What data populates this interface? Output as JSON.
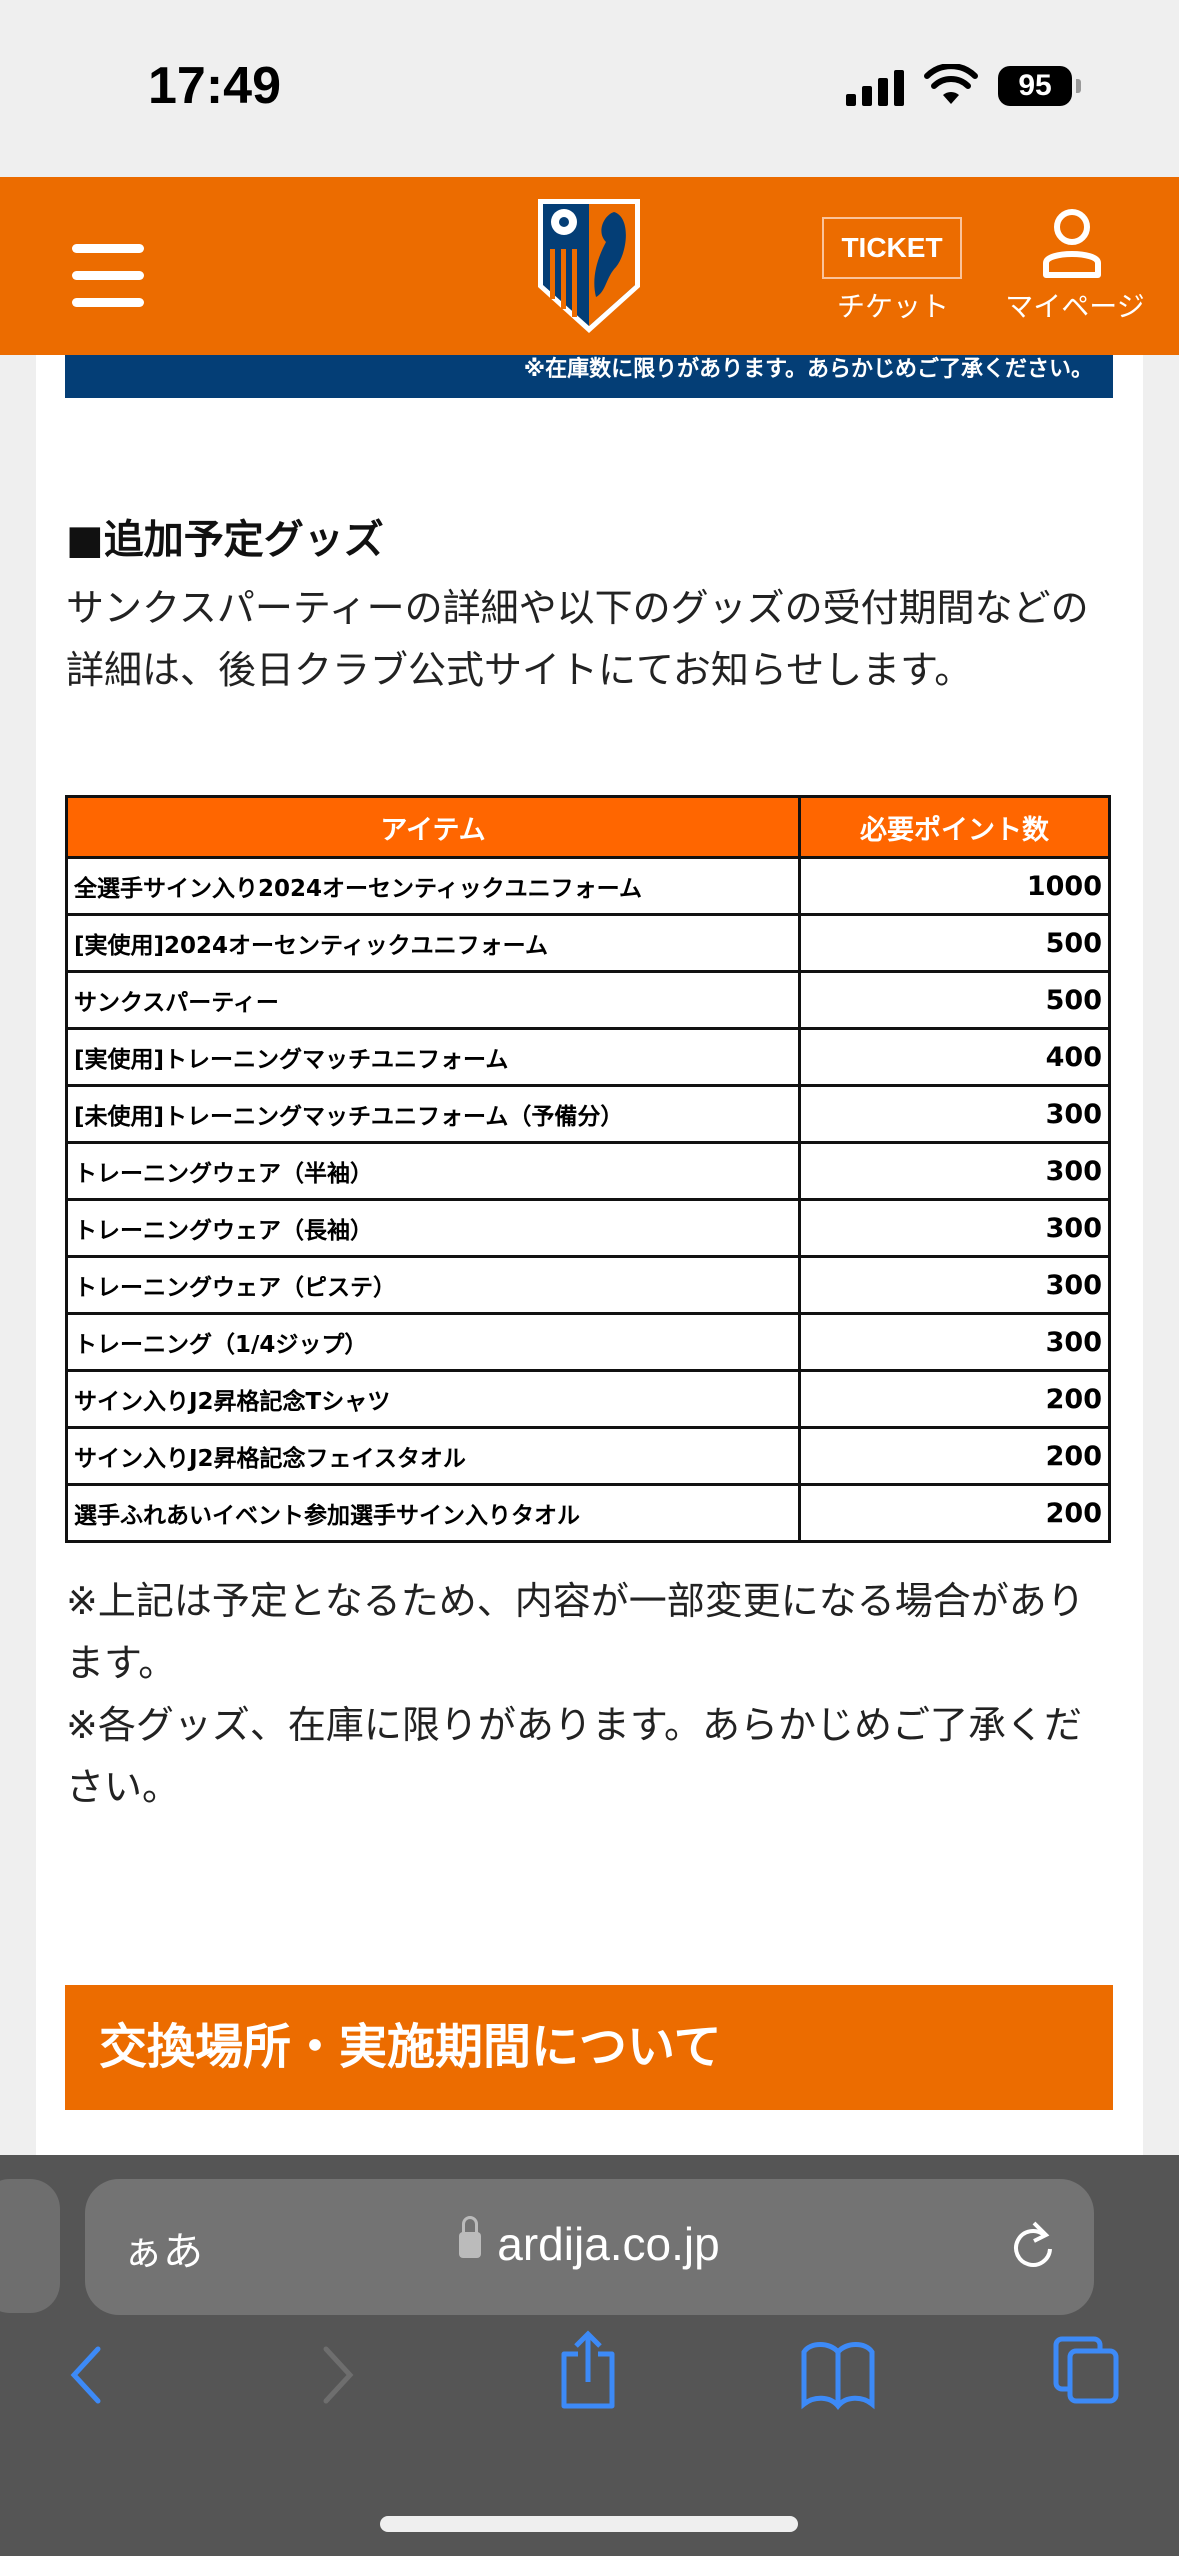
{
  "status": {
    "time": "17:49",
    "battery": "95"
  },
  "header": {
    "ticket_badge": "TICKET",
    "ticket_label": "チケット",
    "mypage_label": "マイページ",
    "logo_text": "OMIYA ARDIJA"
  },
  "banner": {
    "text": "※在庫数に限りがあります。あらかじめご了承ください。"
  },
  "section": {
    "heading": "■追加予定グッズ",
    "paragraph": "サンクスパーティーの詳細や以下のグッズの受付期間などの詳細は、後日クラブ公式サイトにてお知らせします。"
  },
  "table": {
    "headers": [
      "アイテム",
      "必要ポイント数"
    ],
    "rows": [
      {
        "item": "全選手サイン入り2024オーセンティックユニフォーム",
        "points": "1000"
      },
      {
        "item": "[実使用]2024オーセンティックユニフォーム",
        "points": "500"
      },
      {
        "item": "サンクスパーティー",
        "points": "500"
      },
      {
        "item": "[実使用]トレーニングマッチユニフォーム",
        "points": "400"
      },
      {
        "item": "[未使用]トレーニングマッチユニフォーム（予備分）",
        "points": "300"
      },
      {
        "item": "トレーニングウェア（半袖）",
        "points": "300"
      },
      {
        "item": "トレーニングウェア（長袖）",
        "points": "300"
      },
      {
        "item": "トレーニングウェア（ピステ）",
        "points": "300"
      },
      {
        "item": "トレーニング（1/4ジップ）",
        "points": "300"
      },
      {
        "item": "サイン入りJ2昇格記念Tシャツ",
        "points": "200"
      },
      {
        "item": "サイン入りJ2昇格記念フェイスタオル",
        "points": "200"
      },
      {
        "item": "選手ふれあいイベント参加選手サイン入りタオル",
        "points": "200"
      }
    ]
  },
  "notes": [
    "※上記は予定となるため、内容が一部変更になる場合があります。",
    "※各グッズ、在庫に限りがあります。あらかじめご了承ください。"
  ],
  "next_section": {
    "heading": "交換場所・実施期間について"
  },
  "browser": {
    "text_size": "ぁあ",
    "url": "ardija.co.jp"
  },
  "colors": {
    "brand_orange": "#ec6c00",
    "table_header": "#ff6600",
    "navy": "#043e76",
    "ios_blue": "#3d8af7"
  }
}
